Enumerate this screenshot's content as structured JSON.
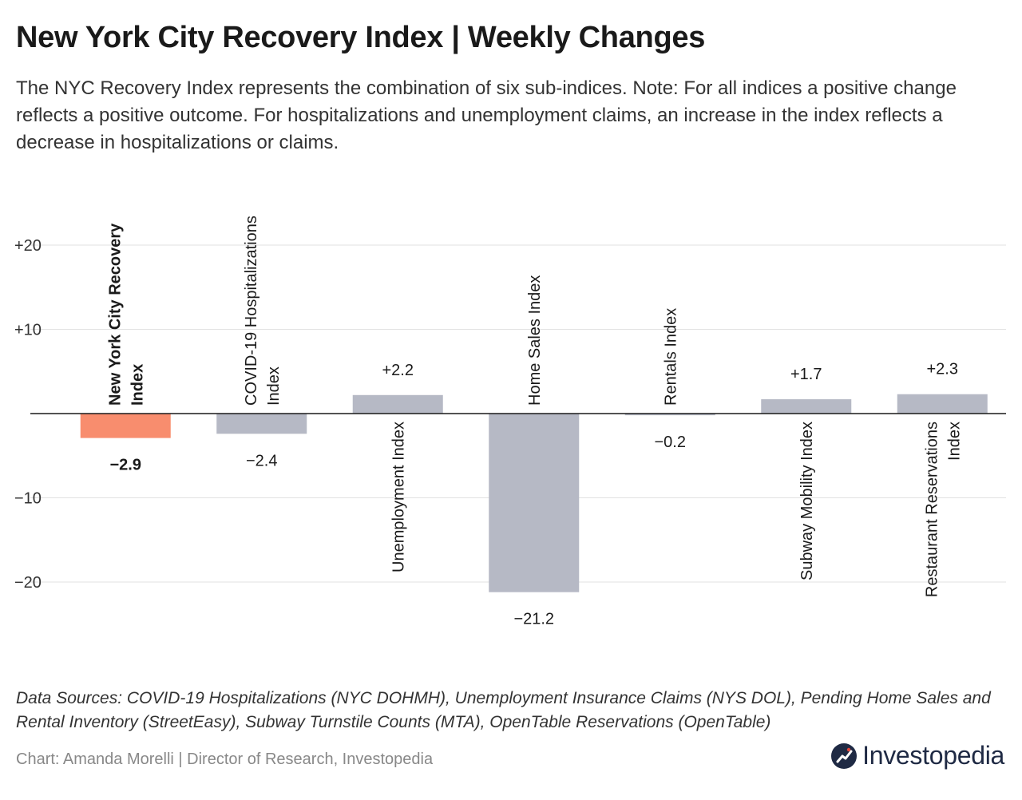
{
  "header": {
    "title": "New York City Recovery Index | Weekly Changes",
    "subtitle": "The NYC Recovery Index represents the combination of six sub-indices. Note: For all indices a positive change reflects a positive outcome. For hospitalizations and unemployment claims, an increase in the index reflects a decrease in hospitalizations or claims."
  },
  "footer": {
    "sources": "Data Sources: COVID-19 Hospitalizations (NYC DOHMH), Unemployment Insurance Claims (NYS DOL), Pending Home Sales and Rental Inventory (StreetEasy), Subway Turnstile Counts (MTA), OpenTable Reservations (OpenTable)",
    "credit": "Chart: Amanda Morelli | Director of Research, Investopedia",
    "logo_text": "Investopedia",
    "logo_icon": "investopedia-logo-icon"
  },
  "chart_data": {
    "type": "bar",
    "categories": [
      [
        "New York City Recovery",
        "Index"
      ],
      [
        "COVID-19 Hospitalizations",
        "Index"
      ],
      [
        "Unemployment Index"
      ],
      [
        "Home Sales Index"
      ],
      [
        "Rentals Index"
      ],
      [
        "Subway Mobility Index"
      ],
      [
        "Restaurant Reservations",
        "Index"
      ]
    ],
    "values": [
      -2.9,
      -2.4,
      2.2,
      -21.2,
      -0.2,
      1.7,
      2.3
    ],
    "value_labels": [
      "−2.9",
      "−2.4",
      "+2.2",
      "−21.2",
      "−0.2",
      "+1.7",
      "+2.3"
    ],
    "highlight_index": 0,
    "ylim": [
      -24,
      24
    ],
    "yticks": [
      20,
      10,
      -10,
      -20
    ],
    "ytick_labels": [
      "+20",
      "+10",
      "−10",
      "−20"
    ],
    "grid": true,
    "colors": {
      "highlight": "#f88d6e",
      "bar": "#b6b9c5",
      "grid": "#e2e2e2",
      "zero_line": "#1a1a1a"
    }
  }
}
